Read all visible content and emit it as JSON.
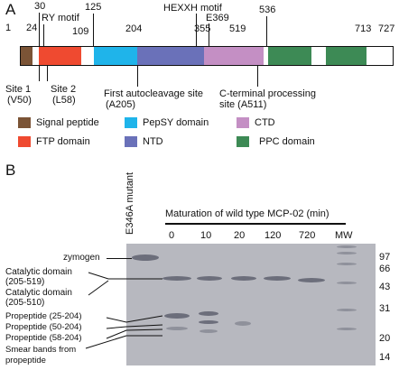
{
  "panel_a": {
    "letter": "A",
    "positions": {
      "p1": "1",
      "p24": "24",
      "p30": "30",
      "p109": "109",
      "p125": "125",
      "p204": "204",
      "p355": "355",
      "p519": "519",
      "p536": "536",
      "p713": "713",
      "p727": "727"
    },
    "motifs": {
      "ry": "RY motif",
      "hexxh": "HEXXH motif",
      "e369": "E369"
    },
    "sites": {
      "site1": "Site 1",
      "site1_res": "(V50)",
      "site2": "Site 2",
      "site2_res": "(L58)",
      "auto": "First autocleavage site",
      "auto_res": "(A205)",
      "cterm": "C-terminal processing",
      "cterm_res": "site (A511)"
    },
    "legend": [
      {
        "label": "Signal peptide",
        "color": "#7b5436"
      },
      {
        "label": "PepSY domain",
        "color": "#1fb4ea"
      },
      {
        "label": "CTD",
        "color": "#c48fc4"
      },
      {
        "label": "FTP domain",
        "color": "#ef4a30"
      },
      {
        "label": "NTD",
        "color": "#6a71b9"
      },
      {
        "label": "PPC domain",
        "color": "#3d8a55"
      }
    ]
  },
  "panel_b": {
    "letter": "B",
    "lane_mutant": "E346A mutant",
    "maturation_title": "Maturation of wild type MCP-02 (min)",
    "time_points": [
      "0",
      "10",
      "20",
      "120",
      "720"
    ],
    "mw_label": "MW",
    "mw_markers": [
      "97",
      "66",
      "43",
      "31",
      "20",
      "14"
    ],
    "band_labels": {
      "zymogen": "zymogen",
      "cat1_a": "Catalytic domain",
      "cat1_b": "(205-519)",
      "cat2_a": "Catalytic domain",
      "cat2_b": "(205-510)",
      "pro1": "Propeptide (25-204)",
      "pro2": "Propeptide (50-204)",
      "pro3": "Propeptide (58-204)",
      "smear_a": "Smear bands from",
      "smear_b": "propeptide"
    }
  }
}
